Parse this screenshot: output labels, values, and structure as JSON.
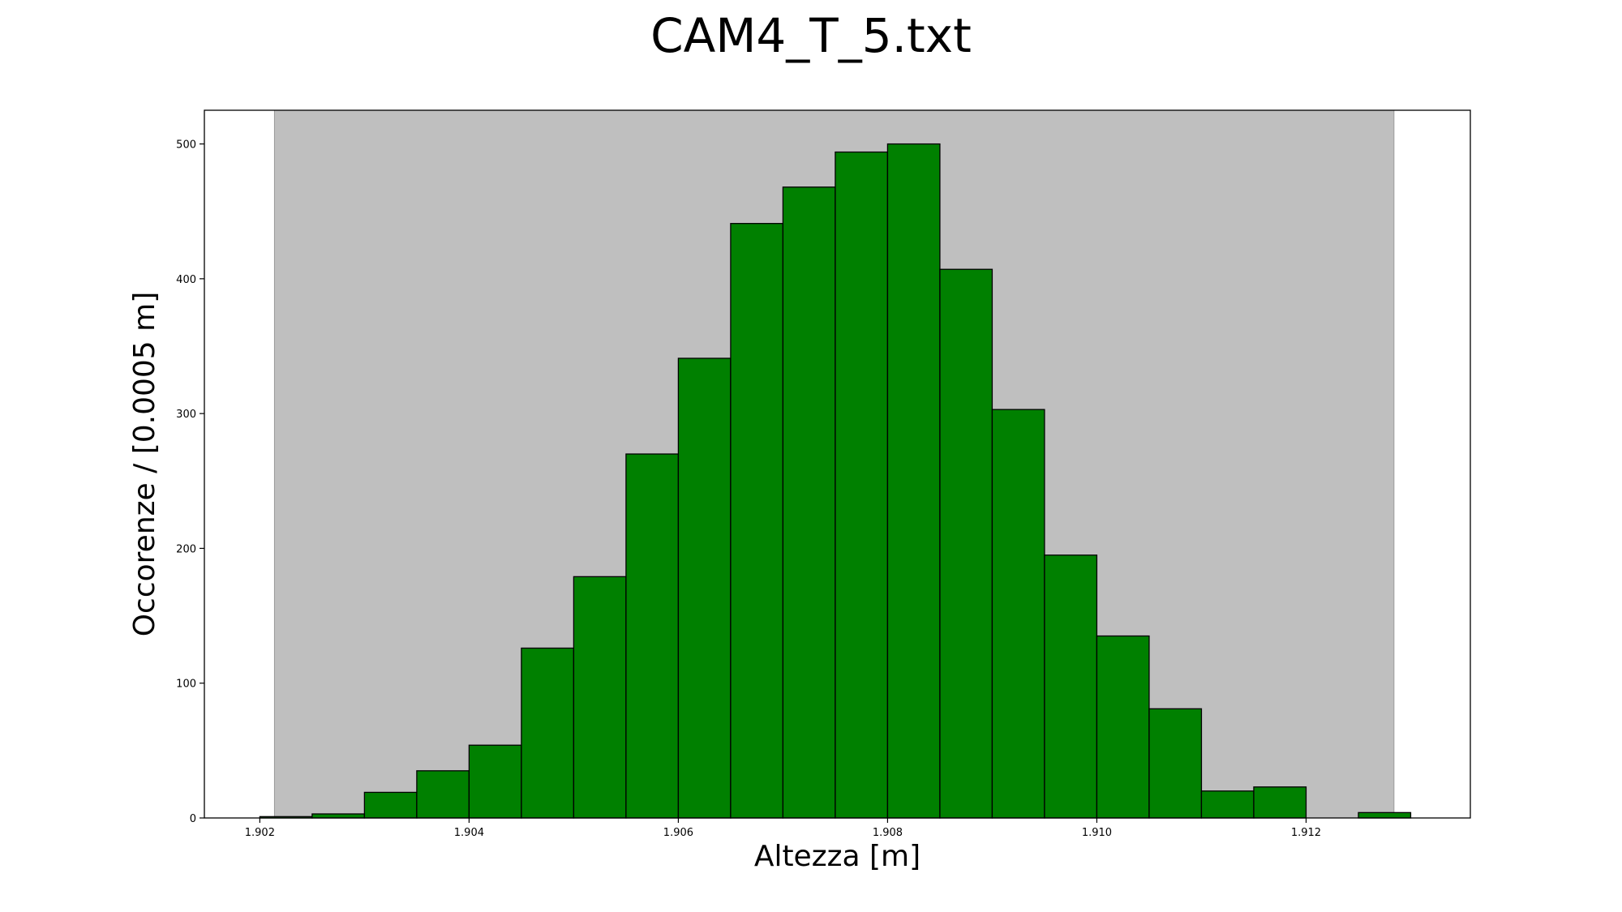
{
  "chart_data": {
    "type": "bar",
    "title": "CAM4_T_5.txt",
    "xlabel": "Altezza [m]",
    "ylabel": "Occorenze / [0.0005 m]",
    "bin_width": 0.0005,
    "bins": [
      {
        "x0": 1.902,
        "x1": 1.9025,
        "count": 1
      },
      {
        "x0": 1.9025,
        "x1": 1.903,
        "count": 3
      },
      {
        "x0": 1.903,
        "x1": 1.9035,
        "count": 19
      },
      {
        "x0": 1.9035,
        "x1": 1.904,
        "count": 35
      },
      {
        "x0": 1.904,
        "x1": 1.9045,
        "count": 54
      },
      {
        "x0": 1.9045,
        "x1": 1.905,
        "count": 126
      },
      {
        "x0": 1.905,
        "x1": 1.9055,
        "count": 179
      },
      {
        "x0": 1.9055,
        "x1": 1.906,
        "count": 270
      },
      {
        "x0": 1.906,
        "x1": 1.9065,
        "count": 341
      },
      {
        "x0": 1.9065,
        "x1": 1.907,
        "count": 441
      },
      {
        "x0": 1.907,
        "x1": 1.9075,
        "count": 468
      },
      {
        "x0": 1.9075,
        "x1": 1.908,
        "count": 494
      },
      {
        "x0": 1.908,
        "x1": 1.9085,
        "count": 500
      },
      {
        "x0": 1.9085,
        "x1": 1.909,
        "count": 407
      },
      {
        "x0": 1.909,
        "x1": 1.9095,
        "count": 303
      },
      {
        "x0": 1.9095,
        "x1": 1.91,
        "count": 195
      },
      {
        "x0": 1.91,
        "x1": 1.9105,
        "count": 135
      },
      {
        "x0": 1.9105,
        "x1": 1.911,
        "count": 81
      },
      {
        "x0": 1.911,
        "x1": 1.9115,
        "count": 20
      },
      {
        "x0": 1.9115,
        "x1": 1.912,
        "count": 23
      },
      {
        "x0": 1.912,
        "x1": 1.9125,
        "count": 0
      },
      {
        "x0": 1.9125,
        "x1": 1.913,
        "count": 4
      }
    ],
    "shaded_region": {
      "x0": 1.90214,
      "x1": 1.91284,
      "color": "#bfbfbf"
    },
    "bar_color": "#008000",
    "edge_color": "#000000",
    "xlim": [
      1.90147,
      1.91357
    ],
    "ylim": [
      0,
      525
    ],
    "xticks": [
      1.902,
      1.904,
      1.906,
      1.908,
      1.91,
      1.912
    ],
    "xtick_labels": [
      "1.902",
      "1.904",
      "1.906",
      "1.908",
      "1.910",
      "1.912"
    ],
    "yticks": [
      0,
      100,
      200,
      300,
      400,
      500
    ],
    "ytick_labels": [
      "0",
      "100",
      "200",
      "300",
      "400",
      "500"
    ],
    "grid": false,
    "legend": "none"
  }
}
